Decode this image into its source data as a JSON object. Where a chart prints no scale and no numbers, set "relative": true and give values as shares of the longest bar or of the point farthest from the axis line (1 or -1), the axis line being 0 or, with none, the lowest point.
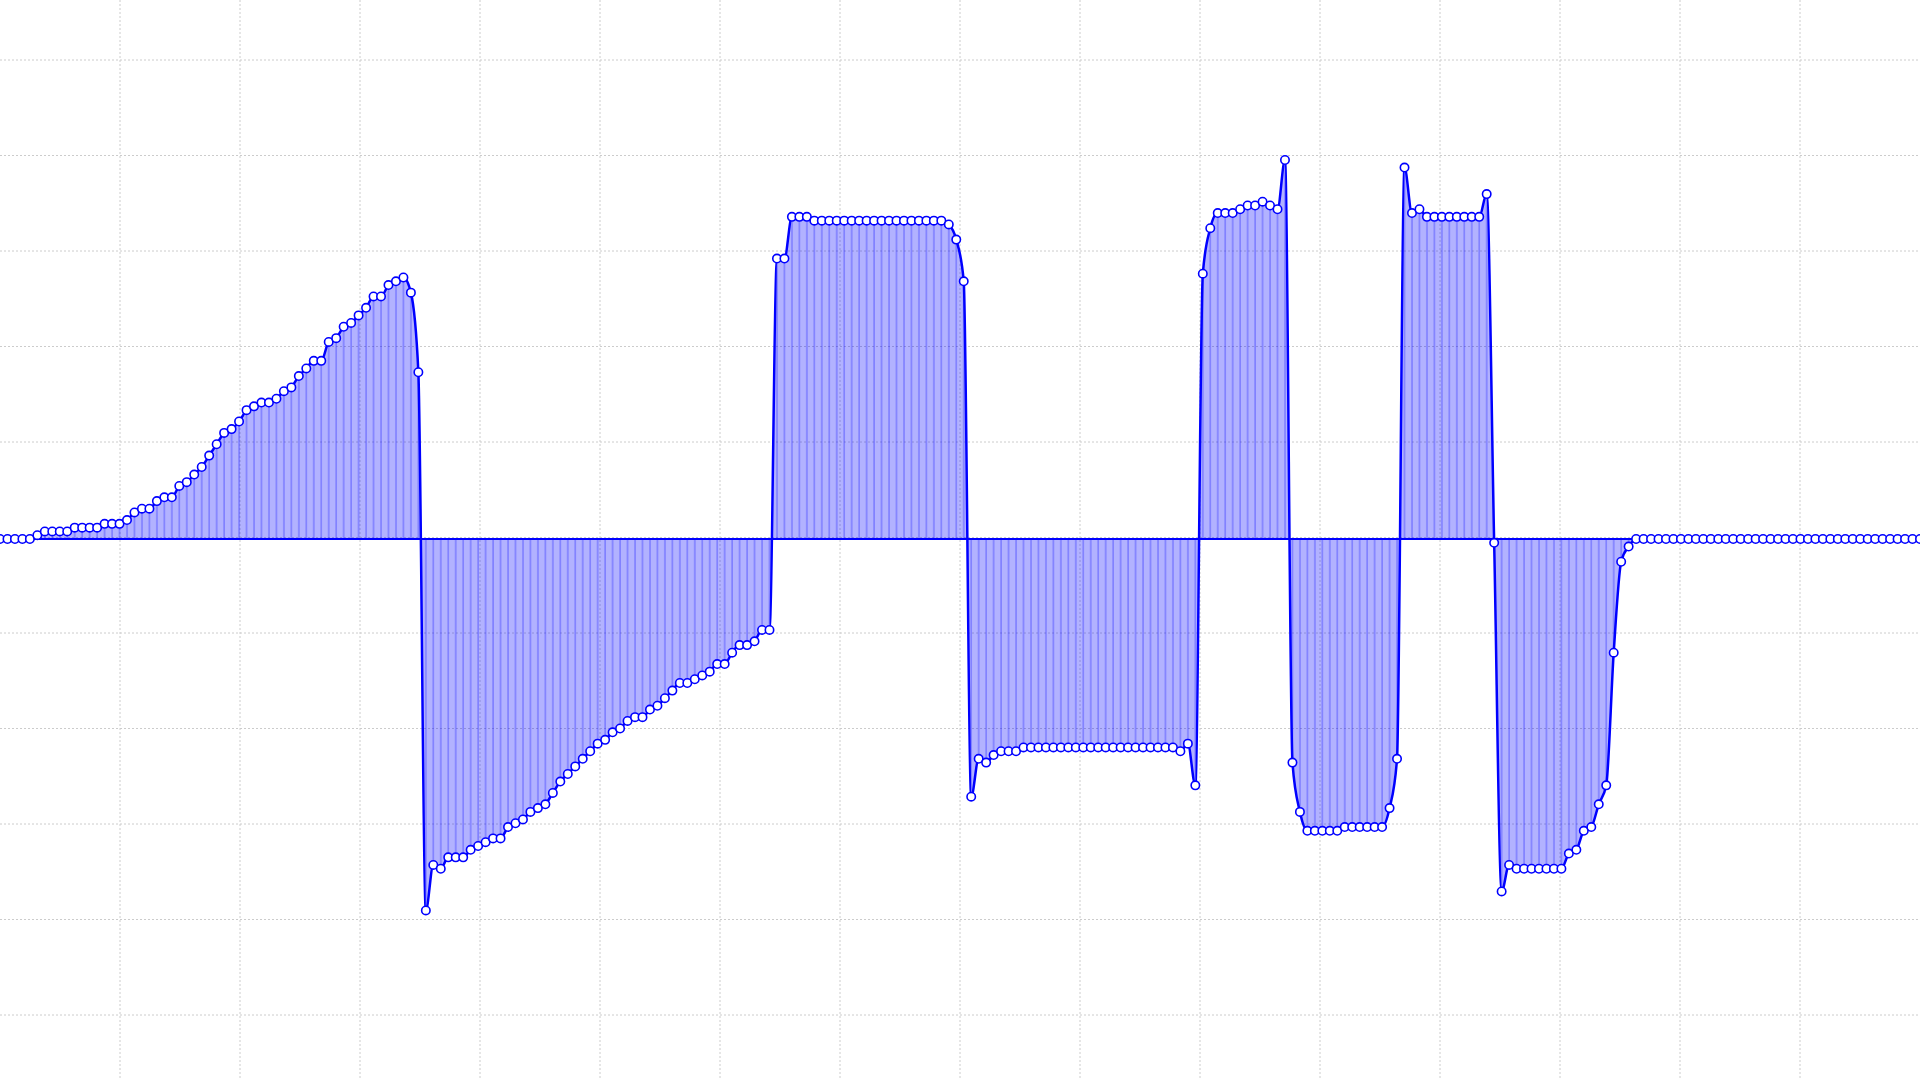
{
  "chart_data": {
    "type": "area",
    "relative": true,
    "grid": true,
    "marker": "circle",
    "color": "#0000ff",
    "categories": [
      null,
      null,
      null,
      null,
      null,
      null,
      null,
      null,
      null,
      null,
      null,
      null,
      null,
      null,
      null,
      null,
      null,
      null,
      null,
      null,
      null,
      null,
      null,
      null,
      null,
      null,
      null,
      null,
      null,
      null,
      null,
      null,
      null,
      null,
      null,
      null,
      null,
      null,
      null,
      null,
      null,
      null,
      null,
      null,
      null,
      null,
      null,
      null,
      null,
      null,
      null,
      null,
      null,
      null,
      null,
      null,
      null,
      null,
      null,
      null,
      null,
      null,
      null,
      null,
      null,
      null,
      null,
      null,
      null,
      null,
      null,
      null,
      null,
      null,
      null,
      null,
      null,
      null,
      null,
      null,
      null,
      null,
      null,
      null,
      null,
      null,
      null,
      null,
      null,
      null,
      null,
      null,
      null,
      null,
      null,
      null,
      null,
      null,
      null,
      null,
      null,
      null,
      null,
      null,
      null,
      null,
      null,
      null,
      null,
      null,
      null,
      null,
      null,
      null,
      null,
      null,
      null,
      null,
      null,
      null,
      null,
      null,
      null,
      null,
      null,
      null,
      null,
      null,
      null,
      null,
      null,
      null,
      null,
      null,
      null,
      null,
      null,
      null,
      null,
      null,
      null,
      null,
      null,
      null,
      null,
      null,
      null,
      null,
      null,
      null,
      null,
      null,
      null,
      null,
      null,
      null,
      null,
      null,
      null,
      null,
      null,
      null,
      null,
      null,
      null,
      null,
      null,
      null,
      null,
      null,
      null,
      null,
      null,
      null,
      null,
      null,
      null,
      null,
      null,
      null,
      null,
      null,
      null,
      null,
      null,
      null,
      null,
      null,
      null,
      null,
      null,
      null,
      null,
      null,
      null,
      null,
      null,
      null,
      null,
      null,
      null,
      null,
      null,
      null,
      null,
      null,
      null,
      null,
      null,
      null,
      null,
      null,
      null,
      null,
      null,
      null,
      null,
      null,
      null,
      null,
      null,
      null,
      null,
      null,
      null,
      null,
      null,
      null,
      null,
      null,
      null,
      null,
      null,
      null,
      null,
      null,
      null,
      null,
      null,
      null,
      null,
      null,
      null,
      null,
      null,
      null,
      null,
      null,
      null,
      null,
      null,
      null,
      null,
      null,
      null,
      null,
      null,
      null
    ],
    "values": [
      0,
      0,
      0,
      0,
      0,
      0.01,
      0.02,
      0.02,
      0.02,
      0.02,
      0.03,
      0.03,
      0.03,
      0.03,
      0.04,
      0.04,
      0.04,
      0.05,
      0.07,
      0.08,
      0.08,
      0.1,
      0.11,
      0.11,
      0.14,
      0.15,
      0.17,
      0.19,
      0.22,
      0.25,
      0.28,
      0.29,
      0.31,
      0.34,
      0.35,
      0.36,
      0.36,
      0.37,
      0.39,
      0.4,
      0.43,
      0.45,
      0.47,
      0.47,
      0.52,
      0.53,
      0.56,
      0.57,
      0.59,
      0.61,
      0.64,
      0.64,
      0.67,
      0.68,
      0.69,
      0.65,
      0.44,
      -0.98,
      -0.86,
      -0.87,
      -0.84,
      -0.84,
      -0.84,
      -0.82,
      -0.81,
      -0.8,
      -0.79,
      -0.79,
      -0.76,
      -0.75,
      -0.74,
      -0.72,
      -0.71,
      -0.7,
      -0.67,
      -0.64,
      -0.62,
      -0.6,
      -0.58,
      -0.56,
      -0.54,
      -0.53,
      -0.51,
      -0.5,
      -0.48,
      -0.47,
      -0.47,
      -0.45,
      -0.44,
      -0.42,
      -0.4,
      -0.38,
      -0.38,
      -0.37,
      -0.36,
      -0.35,
      -0.33,
      -0.33,
      -0.3,
      -0.28,
      -0.28,
      -0.27,
      -0.24,
      -0.24,
      0.74,
      0.74,
      0.85,
      0.85,
      0.85,
      0.84,
      0.84,
      0.84,
      0.84,
      0.84,
      0.84,
      0.84,
      0.84,
      0.84,
      0.84,
      0.84,
      0.84,
      0.84,
      0.84,
      0.84,
      0.84,
      0.84,
      0.84,
      0.83,
      0.79,
      0.68,
      -0.68,
      -0.58,
      -0.59,
      -0.57,
      -0.56,
      -0.56,
      -0.56,
      -0.55,
      -0.55,
      -0.55,
      -0.55,
      -0.55,
      -0.55,
      -0.55,
      -0.55,
      -0.55,
      -0.55,
      -0.55,
      -0.55,
      -0.55,
      -0.55,
      -0.55,
      -0.55,
      -0.55,
      -0.55,
      -0.55,
      -0.55,
      -0.55,
      -0.56,
      -0.54,
      -0.65,
      0.7,
      0.82,
      0.86,
      0.86,
      0.86,
      0.87,
      0.88,
      0.88,
      0.89,
      0.88,
      0.87,
      1,
      -0.59,
      -0.72,
      -0.77,
      -0.77,
      -0.77,
      -0.77,
      -0.77,
      -0.76,
      -0.76,
      -0.76,
      -0.76,
      -0.76,
      -0.76,
      -0.71,
      -0.58,
      0.98,
      0.86,
      0.87,
      0.85,
      0.85,
      0.85,
      0.85,
      0.85,
      0.85,
      0.85,
      0.85,
      0.91,
      -0.01,
      -0.93,
      -0.86,
      -0.87,
      -0.87,
      -0.87,
      -0.87,
      -0.87,
      -0.87,
      -0.87,
      -0.83,
      -0.82,
      -0.77,
      -0.76,
      -0.7,
      -0.65,
      -0.3,
      -0.06,
      -0.02,
      0,
      0,
      0,
      0,
      0,
      0,
      0,
      0,
      0,
      0,
      0,
      0,
      0,
      0,
      0,
      0,
      0,
      0,
      0,
      0,
      0,
      0,
      0,
      0,
      0,
      0,
      0,
      0,
      0,
      0,
      0,
      0,
      0,
      0,
      0,
      0,
      0,
      0,
      0
    ]
  }
}
